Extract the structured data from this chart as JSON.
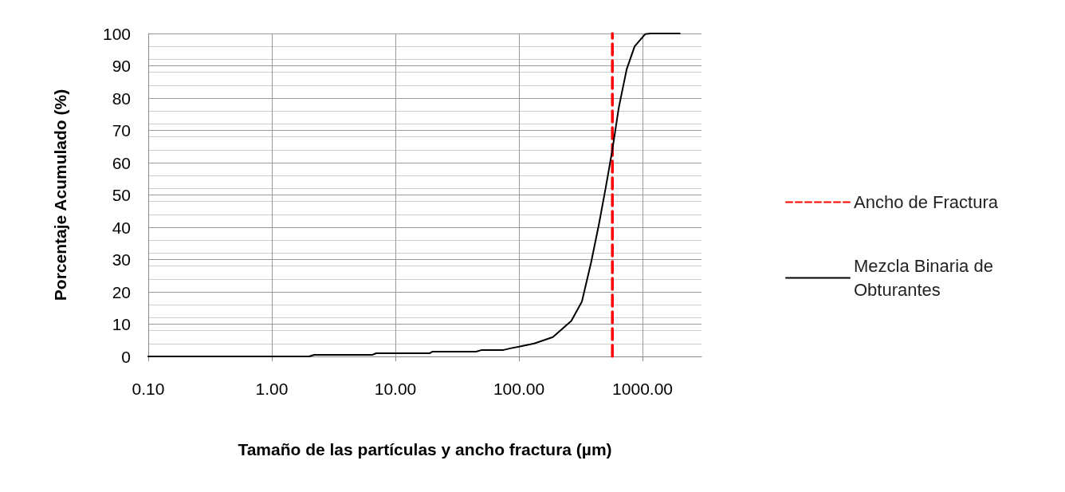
{
  "chart_data": {
    "type": "line",
    "xlabel": "Tamaño de las partículas y ancho fractura (µm)",
    "ylabel": "Porcentaje Acumulado (%)",
    "log": "x",
    "xlim": [
      0.1,
      3000
    ],
    "xticks": [
      {
        "value": 0.1,
        "label": "0.10"
      },
      {
        "value": 1,
        "label": "1.00"
      },
      {
        "value": 10,
        "label": "10.00"
      },
      {
        "value": 100,
        "label": "100.00"
      },
      {
        "value": 1000,
        "label": "1000.00"
      }
    ],
    "ylim": [
      0,
      100
    ],
    "yticks": [
      0,
      10,
      20,
      30,
      40,
      50,
      60,
      70,
      80,
      90,
      100
    ],
    "grid": true,
    "legend": "right",
    "marker": "none",
    "line_style": "solid",
    "series": [
      {
        "name": "Ancho de Fractura",
        "color": "#ff0000",
        "line_style": "dashed",
        "x": [
          570,
          570
        ],
        "values": [
          0,
          100
        ]
      },
      {
        "name": "Mezcla Binaria de Obturantes",
        "color": "#000000",
        "x": [
          0.1,
          2,
          2.2,
          6.5,
          7,
          19,
          20,
          45,
          50,
          75,
          85,
          100,
          133,
          188,
          265,
          323,
          383,
          444,
          502,
          570,
          642,
          745,
          863,
          1050,
          1158,
          2000
        ],
        "values": [
          0,
          0,
          0.5,
          0.5,
          1,
          1,
          1.5,
          1.5,
          2,
          2,
          2.5,
          3,
          4,
          6,
          11,
          17,
          29,
          41,
          52,
          64,
          77,
          89,
          96,
          99.8,
          100,
          100
        ]
      }
    ]
  }
}
